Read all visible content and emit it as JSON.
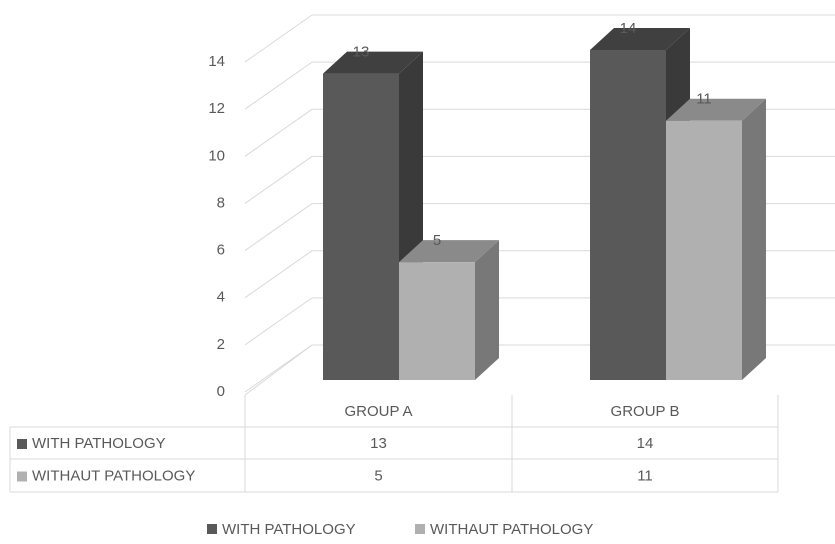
{
  "chart_data": {
    "type": "bar",
    "categories": [
      "GROUP A",
      "GROUP B"
    ],
    "series": [
      {
        "name": "WITH PATHOLOGY",
        "color": "#595959",
        "values": [
          13,
          14
        ]
      },
      {
        "name": "WITHAUT PATHOLOGY",
        "color": "#b0b0b0",
        "values": [
          5,
          11
        ]
      }
    ],
    "ylim": [
      0,
      14
    ],
    "yticks": [
      0,
      2,
      4,
      6,
      8,
      10,
      12,
      14
    ],
    "grid": true,
    "legend": "bottom"
  }
}
